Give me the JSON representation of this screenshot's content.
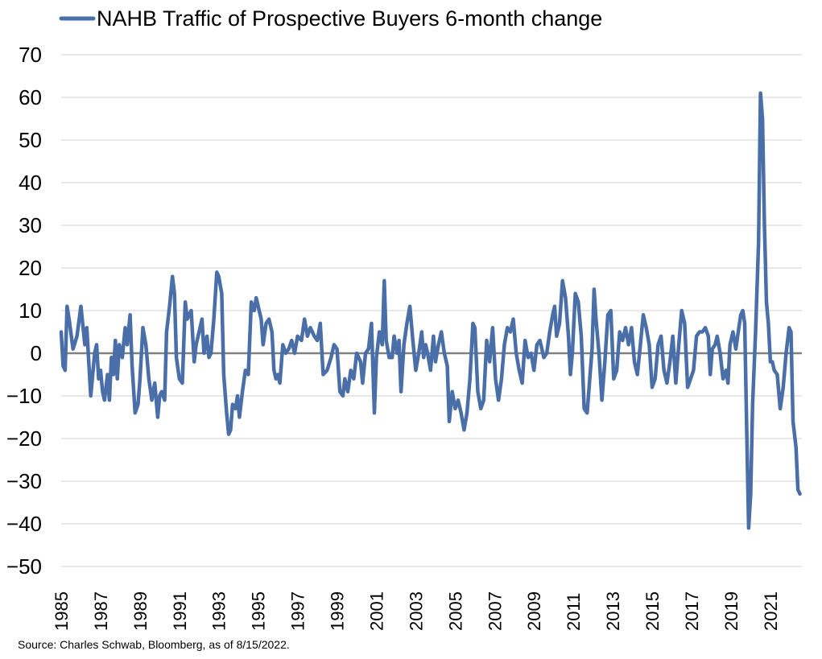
{
  "chart_data": {
    "type": "line",
    "title": "",
    "xlabel": "",
    "ylabel": "",
    "legend_position": "top-left",
    "grid": true,
    "ylim": [
      -50,
      70
    ],
    "xlim": [
      1985,
      2022.6
    ],
    "y_ticks": [
      "70",
      "60",
      "50",
      "40",
      "30",
      "20",
      "10",
      "0",
      "-10",
      "-20",
      "-30",
      "-40",
      "-50"
    ],
    "x_ticks": [
      "1985",
      "1987",
      "1989",
      "1991",
      "1993",
      "1995",
      "1997",
      "1999",
      "2001",
      "2003",
      "2005",
      "2007",
      "2009",
      "2011",
      "2013",
      "2015",
      "2017",
      "2019",
      "2021"
    ],
    "series": [
      {
        "name": "NAHB Traffic of Prospective Buyers 6-month change",
        "color": "#4a6fa8",
        "points": [
          [
            1985.0,
            5
          ],
          [
            1985.1,
            -3
          ],
          [
            1985.2,
            -4
          ],
          [
            1985.3,
            11
          ],
          [
            1985.4,
            8
          ],
          [
            1985.6,
            1
          ],
          [
            1985.8,
            4
          ],
          [
            1986.0,
            11
          ],
          [
            1986.2,
            2
          ],
          [
            1986.3,
            6
          ],
          [
            1986.5,
            -10
          ],
          [
            1986.7,
            0
          ],
          [
            1986.8,
            2
          ],
          [
            1986.9,
            -6
          ],
          [
            1987.0,
            -4
          ],
          [
            1987.1,
            -9
          ],
          [
            1987.2,
            -11
          ],
          [
            1987.35,
            -5
          ],
          [
            1987.45,
            -11
          ],
          [
            1987.55,
            -1
          ],
          [
            1987.65,
            -5
          ],
          [
            1987.75,
            3
          ],
          [
            1987.85,
            -6
          ],
          [
            1987.95,
            2
          ],
          [
            1988.1,
            -1
          ],
          [
            1988.25,
            6
          ],
          [
            1988.35,
            2
          ],
          [
            1988.5,
            9
          ],
          [
            1988.6,
            -3
          ],
          [
            1988.75,
            -14
          ],
          [
            1988.9,
            -12
          ],
          [
            1989.0,
            -6
          ],
          [
            1989.15,
            6
          ],
          [
            1989.3,
            2
          ],
          [
            1989.45,
            -6
          ],
          [
            1989.6,
            -11
          ],
          [
            1989.75,
            -7
          ],
          [
            1989.9,
            -15
          ],
          [
            1990.0,
            -10
          ],
          [
            1990.1,
            -9
          ],
          [
            1990.25,
            -11
          ],
          [
            1990.35,
            5
          ],
          [
            1990.5,
            11
          ],
          [
            1990.65,
            18
          ],
          [
            1990.75,
            14
          ],
          [
            1990.85,
            -1
          ],
          [
            1991.0,
            -6
          ],
          [
            1991.15,
            -7
          ],
          [
            1991.3,
            12
          ],
          [
            1991.4,
            8
          ],
          [
            1991.6,
            10
          ],
          [
            1991.75,
            -2
          ],
          [
            1991.85,
            2
          ],
          [
            1992.0,
            5
          ],
          [
            1992.15,
            8
          ],
          [
            1992.25,
            0
          ],
          [
            1992.4,
            4
          ],
          [
            1992.5,
            -1
          ],
          [
            1992.6,
            0
          ],
          [
            1992.75,
            8
          ],
          [
            1992.9,
            19
          ],
          [
            1993.0,
            18
          ],
          [
            1993.15,
            14
          ],
          [
            1993.25,
            -5
          ],
          [
            1993.4,
            -14
          ],
          [
            1993.5,
            -19
          ],
          [
            1993.6,
            -18
          ],
          [
            1993.7,
            -12
          ],
          [
            1993.85,
            -13
          ],
          [
            1993.95,
            -10
          ],
          [
            1994.05,
            -15
          ],
          [
            1994.2,
            -9
          ],
          [
            1994.35,
            -4
          ],
          [
            1994.5,
            -5
          ],
          [
            1994.65,
            12
          ],
          [
            1994.8,
            10
          ],
          [
            1994.9,
            13
          ],
          [
            1995.0,
            11
          ],
          [
            1995.15,
            8
          ],
          [
            1995.25,
            2
          ],
          [
            1995.4,
            7
          ],
          [
            1995.55,
            8
          ],
          [
            1995.7,
            5
          ],
          [
            1995.8,
            -4
          ],
          [
            1995.9,
            -6
          ],
          [
            1996.0,
            -5
          ],
          [
            1996.1,
            -7
          ],
          [
            1996.25,
            2
          ],
          [
            1996.4,
            0
          ],
          [
            1996.55,
            1
          ],
          [
            1996.7,
            3
          ],
          [
            1996.85,
            0
          ],
          [
            1997.0,
            4
          ],
          [
            1997.2,
            3
          ],
          [
            1997.35,
            8
          ],
          [
            1997.5,
            4
          ],
          [
            1997.65,
            6
          ],
          [
            1997.85,
            4
          ],
          [
            1998.0,
            3
          ],
          [
            1998.15,
            7
          ],
          [
            1998.3,
            -5
          ],
          [
            1998.5,
            -4
          ],
          [
            1998.7,
            -1
          ],
          [
            1998.85,
            2
          ],
          [
            1999.0,
            1
          ],
          [
            1999.15,
            -9
          ],
          [
            1999.3,
            -10
          ],
          [
            1999.4,
            -6
          ],
          [
            1999.55,
            -9
          ],
          [
            1999.7,
            -4
          ],
          [
            1999.85,
            -6
          ],
          [
            2000.0,
            0
          ],
          [
            2000.2,
            -2
          ],
          [
            2000.3,
            -7
          ],
          [
            2000.45,
            0
          ],
          [
            2000.6,
            1
          ],
          [
            2000.75,
            7
          ],
          [
            2000.9,
            -14
          ],
          [
            2001.0,
            -1
          ],
          [
            2001.15,
            5
          ],
          [
            2001.3,
            2
          ],
          [
            2001.4,
            17
          ],
          [
            2001.5,
            3
          ],
          [
            2001.65,
            -1
          ],
          [
            2001.8,
            -1
          ],
          [
            2001.9,
            4
          ],
          [
            2002.05,
            0
          ],
          [
            2002.15,
            3
          ],
          [
            2002.25,
            -9
          ],
          [
            2002.4,
            2
          ],
          [
            2002.55,
            7
          ],
          [
            2002.7,
            11
          ],
          [
            2002.85,
            3
          ],
          [
            2003.0,
            -4
          ],
          [
            2003.15,
            0
          ],
          [
            2003.3,
            5
          ],
          [
            2003.4,
            -1
          ],
          [
            2003.5,
            2
          ],
          [
            2003.6,
            0
          ],
          [
            2003.75,
            -4
          ],
          [
            2003.9,
            4
          ],
          [
            2004.0,
            -2
          ],
          [
            2004.15,
            2
          ],
          [
            2004.3,
            5
          ],
          [
            2004.45,
            0
          ],
          [
            2004.6,
            -3
          ],
          [
            2004.7,
            -16
          ],
          [
            2004.85,
            -9
          ],
          [
            2005.0,
            -13
          ],
          [
            2005.15,
            -11
          ],
          [
            2005.3,
            -14
          ],
          [
            2005.45,
            -18
          ],
          [
            2005.6,
            -14
          ],
          [
            2005.75,
            -6
          ],
          [
            2005.9,
            7
          ],
          [
            2006.0,
            6
          ],
          [
            2006.15,
            -9
          ],
          [
            2006.3,
            -13
          ],
          [
            2006.45,
            -11
          ],
          [
            2006.6,
            3
          ],
          [
            2006.75,
            -2
          ],
          [
            2006.9,
            6
          ],
          [
            2007.05,
            -6
          ],
          [
            2007.2,
            -11
          ],
          [
            2007.35,
            -6
          ],
          [
            2007.5,
            2
          ],
          [
            2007.65,
            6
          ],
          [
            2007.8,
            5
          ],
          [
            2007.95,
            8
          ],
          [
            2008.1,
            0
          ],
          [
            2008.25,
            -4
          ],
          [
            2008.4,
            -7
          ],
          [
            2008.55,
            3
          ],
          [
            2008.7,
            -1
          ],
          [
            2008.85,
            0
          ],
          [
            2009.0,
            -4
          ],
          [
            2009.15,
            2
          ],
          [
            2009.3,
            3
          ],
          [
            2009.5,
            -1
          ],
          [
            2009.65,
            0
          ],
          [
            2009.8,
            5
          ],
          [
            2009.95,
            9
          ],
          [
            2010.05,
            11
          ],
          [
            2010.15,
            4
          ],
          [
            2010.3,
            7
          ],
          [
            2010.45,
            17
          ],
          [
            2010.6,
            13
          ],
          [
            2010.75,
            4
          ],
          [
            2010.85,
            -5
          ],
          [
            2010.95,
            0
          ],
          [
            2011.1,
            14
          ],
          [
            2011.25,
            12
          ],
          [
            2011.4,
            4
          ],
          [
            2011.55,
            -13
          ],
          [
            2011.7,
            -14
          ],
          [
            2011.8,
            -8
          ],
          [
            2011.95,
            1
          ],
          [
            2012.05,
            15
          ],
          [
            2012.15,
            8
          ],
          [
            2012.3,
            0
          ],
          [
            2012.45,
            -11
          ],
          [
            2012.6,
            -2
          ],
          [
            2012.75,
            9
          ],
          [
            2012.9,
            10
          ],
          [
            2013.05,
            -6
          ],
          [
            2013.2,
            -4
          ],
          [
            2013.35,
            5
          ],
          [
            2013.5,
            3
          ],
          [
            2013.65,
            6
          ],
          [
            2013.8,
            2
          ],
          [
            2013.95,
            6
          ],
          [
            2014.1,
            -2
          ],
          [
            2014.25,
            -5
          ],
          [
            2014.4,
            2
          ],
          [
            2014.55,
            9
          ],
          [
            2014.7,
            6
          ],
          [
            2014.85,
            2
          ],
          [
            2015.0,
            -8
          ],
          [
            2015.15,
            -6
          ],
          [
            2015.3,
            2
          ],
          [
            2015.45,
            4
          ],
          [
            2015.6,
            -4
          ],
          [
            2015.75,
            -7
          ],
          [
            2015.9,
            -2
          ],
          [
            2016.05,
            4
          ],
          [
            2016.2,
            -7
          ],
          [
            2016.35,
            2
          ],
          [
            2016.5,
            10
          ],
          [
            2016.65,
            7
          ],
          [
            2016.8,
            -8
          ],
          [
            2016.95,
            -6
          ],
          [
            2017.1,
            -4
          ],
          [
            2017.25,
            4
          ],
          [
            2017.4,
            5
          ],
          [
            2017.55,
            5
          ],
          [
            2017.7,
            6
          ],
          [
            2017.85,
            4
          ],
          [
            2017.95,
            -5
          ],
          [
            2018.05,
            1
          ],
          [
            2018.2,
            2
          ],
          [
            2018.3,
            4
          ],
          [
            2018.45,
            0
          ],
          [
            2018.6,
            -6
          ],
          [
            2018.75,
            -4
          ],
          [
            2018.85,
            -7
          ],
          [
            2018.95,
            2
          ],
          [
            2019.1,
            5
          ],
          [
            2019.25,
            1
          ],
          [
            2019.4,
            6
          ],
          [
            2019.5,
            9
          ],
          [
            2019.6,
            10
          ],
          [
            2019.7,
            7
          ],
          [
            2019.8,
            -18
          ],
          [
            2019.9,
            -41
          ],
          [
            2020.0,
            -33
          ],
          [
            2020.1,
            -12
          ],
          [
            2020.25,
            5
          ],
          [
            2020.4,
            26
          ],
          [
            2020.5,
            61
          ],
          [
            2020.6,
            55
          ],
          [
            2020.7,
            30
          ],
          [
            2020.8,
            12
          ],
          [
            2020.9,
            7
          ],
          [
            2021.0,
            -2
          ],
          [
            2021.1,
            -2
          ],
          [
            2021.2,
            -4
          ],
          [
            2021.35,
            -5
          ],
          [
            2021.5,
            -13
          ],
          [
            2021.65,
            -8
          ],
          [
            2021.8,
            0
          ],
          [
            2021.95,
            6
          ],
          [
            2022.05,
            5
          ],
          [
            2022.15,
            -16
          ],
          [
            2022.3,
            -22
          ],
          [
            2022.4,
            -32
          ],
          [
            2022.5,
            -33
          ]
        ]
      }
    ]
  },
  "source_note": "Source: Charles Schwab, Bloomberg, as of 8/15/2022."
}
